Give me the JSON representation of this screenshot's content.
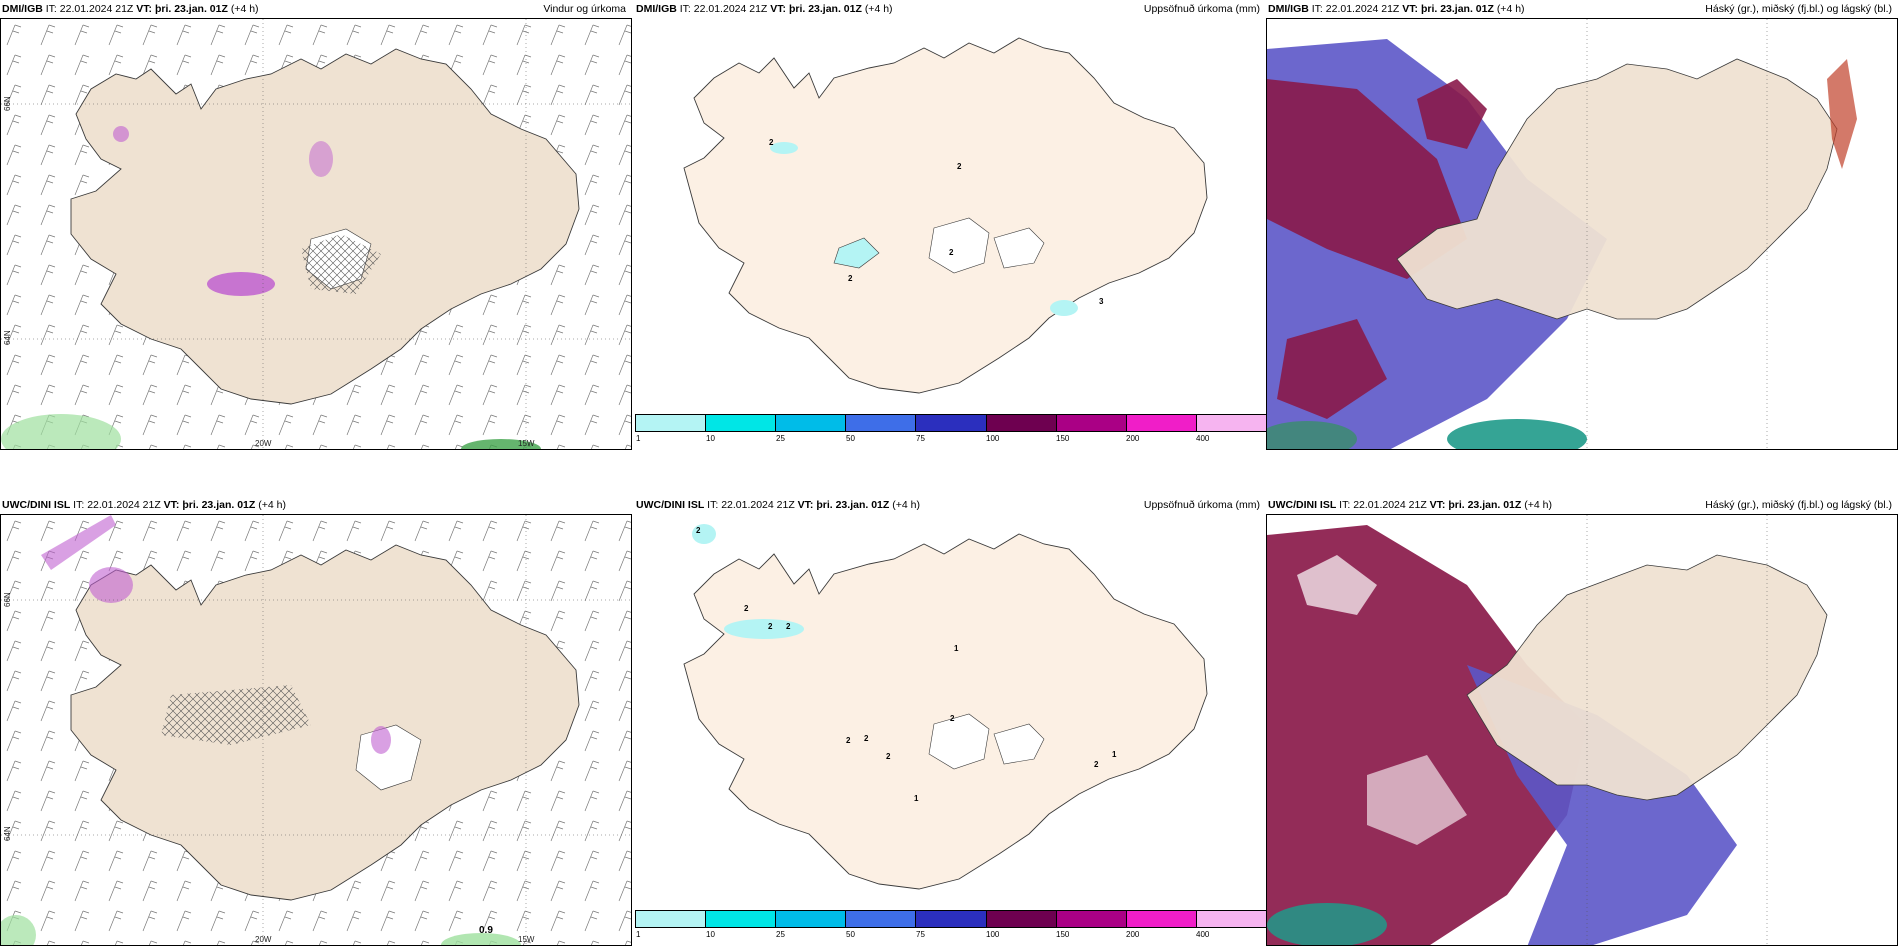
{
  "panels": [
    {
      "model": "DMI/IGB",
      "it_label": "IT:",
      "it": "22.01.2024 21Z",
      "vt_label": "VT:",
      "vt": "þri. 23.jan. 01Z",
      "lead": "(+4 h)",
      "title": "Vindur og úrkoma",
      "type": "wind"
    },
    {
      "model": "DMI/IGB",
      "it_label": "IT:",
      "it": "22.01.2024 21Z",
      "vt_label": "VT:",
      "vt": "þri. 23.jan. 01Z",
      "lead": "(+4 h)",
      "title": "Uppsöfnuð úrkoma (mm)",
      "type": "accum"
    },
    {
      "model": "DMI/IGB",
      "it_label": "IT:",
      "it": "22.01.2024 21Z",
      "vt_label": "VT:",
      "vt": "þri. 23.jan. 01Z",
      "lead": "(+4 h)",
      "title": "Háský (gr.), miðský (fj.bl.) og lágský (bl.)",
      "type": "cloud"
    },
    {
      "model": "UWC/DINI ISL",
      "it_label": "IT:",
      "it": "22.01.2024 21Z",
      "vt_label": "VT:",
      "vt": "þri. 23.jan. 01Z",
      "lead": "(+4 h)",
      "title": "",
      "type": "wind"
    },
    {
      "model": "UWC/DINI ISL",
      "it_label": "IT:",
      "it": "22.01.2024 21Z",
      "vt_label": "VT:",
      "vt": "þri. 23.jan. 01Z",
      "lead": "(+4 h)",
      "title": "Uppsöfnuð úrkoma (mm)",
      "type": "accum"
    },
    {
      "model": "UWC/DINI ISL",
      "it_label": "IT:",
      "it": "22.01.2024 21Z",
      "vt_label": "VT:",
      "vt": "þri. 23.jan. 01Z",
      "lead": "(+4 h)",
      "title": "Háský (gr.), miðský (fj.bl.) og lágský (bl.)",
      "type": "cloud"
    }
  ],
  "axes": {
    "lon1": "20W",
    "lon2": "15W",
    "lat1": "66N",
    "lat2": "64N"
  },
  "colorbar": {
    "ticks": [
      "1",
      "10",
      "25",
      "50",
      "75",
      "100",
      "150",
      "200",
      "400"
    ],
    "colors": [
      "#b4f4f4",
      "#00e6e6",
      "#00bce8",
      "#3e6ee8",
      "#2b2fbe",
      "#6e0050",
      "#aa0085",
      "#f01ec8",
      "#f6b4f0"
    ]
  },
  "accum_labels": {
    "top": [
      "2",
      "2",
      "2",
      "2",
      "3"
    ],
    "bottom": [
      "2",
      "2",
      "2",
      "2",
      "1",
      "2",
      "2",
      "2",
      "2",
      "1",
      "2",
      "1"
    ]
  },
  "wind_labels": {
    "bottom": [
      "0.9"
    ]
  },
  "colors": {
    "land": "#efe2d2",
    "land_light": "#fcf0e4",
    "sea": "#ffffff",
    "coast": "#3a3a3a",
    "high_cloud": "#f0f0f0",
    "mid_cloud": "#5c57c8",
    "low_cloud": "#8a1a4a",
    "precip": "#c060d0"
  }
}
